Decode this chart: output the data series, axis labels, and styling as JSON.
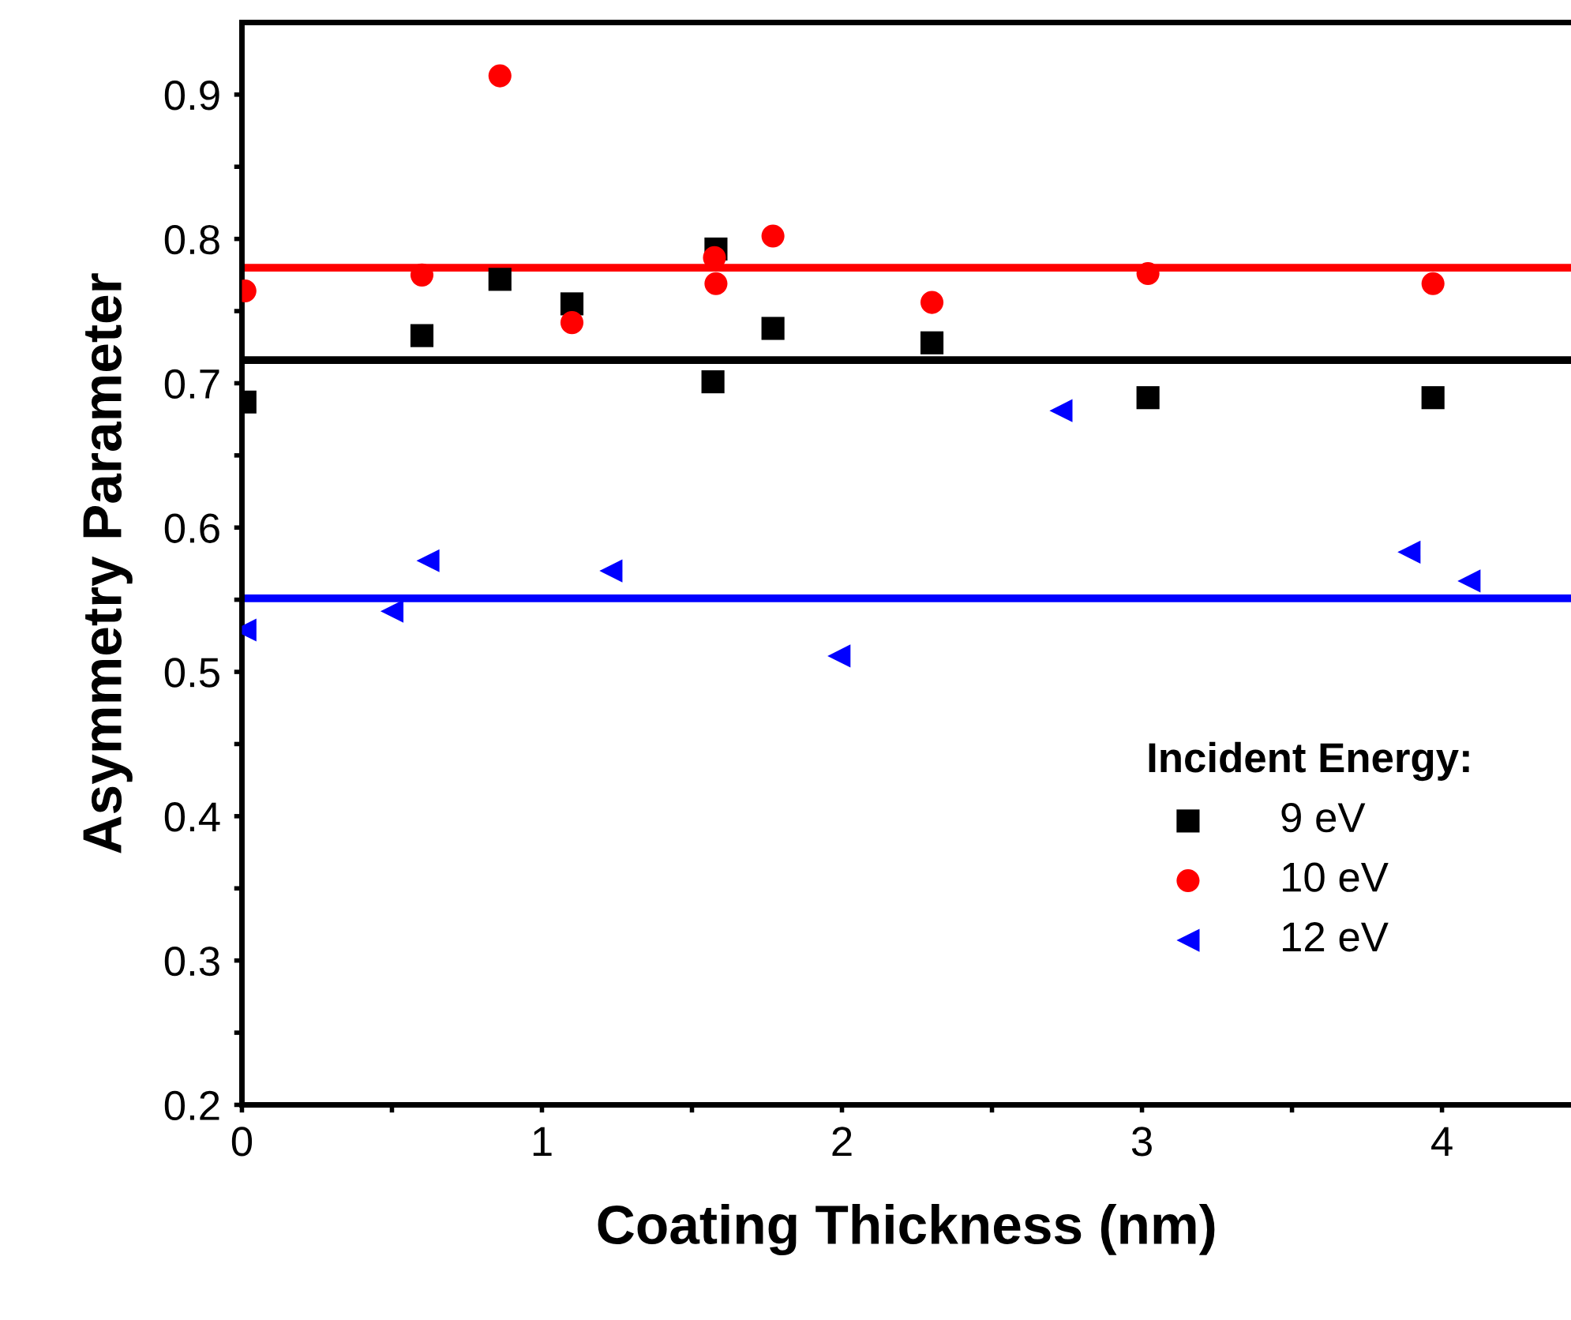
{
  "chart_data": {
    "type": "scatter",
    "xlabel": "Coating Thickness (nm)",
    "ylabel": "Asymmetry Parameter",
    "legend_title": "Incident Energy:",
    "legend": "bottom right",
    "series": [
      {
        "name": "9 eV",
        "color": "#000000",
        "marker": "square",
        "x": [
          0.01,
          0.6,
          0.86,
          1.1,
          1.58,
          1.57,
          1.77,
          2.3,
          3.02,
          3.97
        ],
        "values": [
          0.687,
          0.733,
          0.772,
          0.755,
          0.793,
          0.701,
          0.738,
          0.728,
          0.69,
          0.69
        ]
      },
      {
        "name": "10 eV",
        "color": "#ff0000",
        "marker": "circle",
        "x": [
          0.01,
          0.6,
          0.86,
          1.1,
          1.575,
          1.58,
          1.77,
          2.3,
          3.02,
          3.97
        ],
        "values": [
          0.764,
          0.775,
          0.913,
          0.742,
          0.787,
          0.769,
          0.802,
          0.756,
          0.776,
          0.769
        ]
      },
      {
        "name": "12 eV",
        "color": "#0000ff",
        "marker": "triangle",
        "x": [
          0.01,
          0.5,
          0.62,
          1.23,
          1.99,
          2.73,
          3.89,
          4.09
        ],
        "values": [
          0.529,
          0.542,
          0.577,
          0.57,
          0.511,
          0.681,
          0.583,
          0.563
        ]
      }
    ],
    "ref_lines": [
      {
        "axis": "y",
        "value": 0.78,
        "color": "#ff0000"
      },
      {
        "axis": "y",
        "value": 0.716,
        "color": "#000000"
      },
      {
        "axis": "y",
        "value": 0.551,
        "color": "#0000ff"
      }
    ],
    "xlim": [
      0,
      4.43
    ],
    "ylim": [
      0.2,
      0.95
    ],
    "xticks": [
      0,
      {
        "value": 0.5,
        "label": null
      },
      1,
      {
        "value": 1.5,
        "label": null
      },
      2,
      {
        "value": 2.5,
        "label": null
      },
      3,
      {
        "value": 3.5,
        "label": null
      },
      4
    ],
    "yticks": [
      0.2,
      {
        "value": 0.25,
        "label": null
      },
      0.3,
      {
        "value": 0.35,
        "label": null
      },
      0.4,
      {
        "value": 0.45,
        "label": null
      },
      0.5,
      {
        "value": 0.55,
        "label": null
      },
      0.6,
      {
        "value": 0.65,
        "label": null
      },
      0.7,
      {
        "value": 0.75,
        "label": null
      },
      0.8,
      {
        "value": 0.85,
        "label": null
      },
      0.9
    ],
    "grid": false
  }
}
